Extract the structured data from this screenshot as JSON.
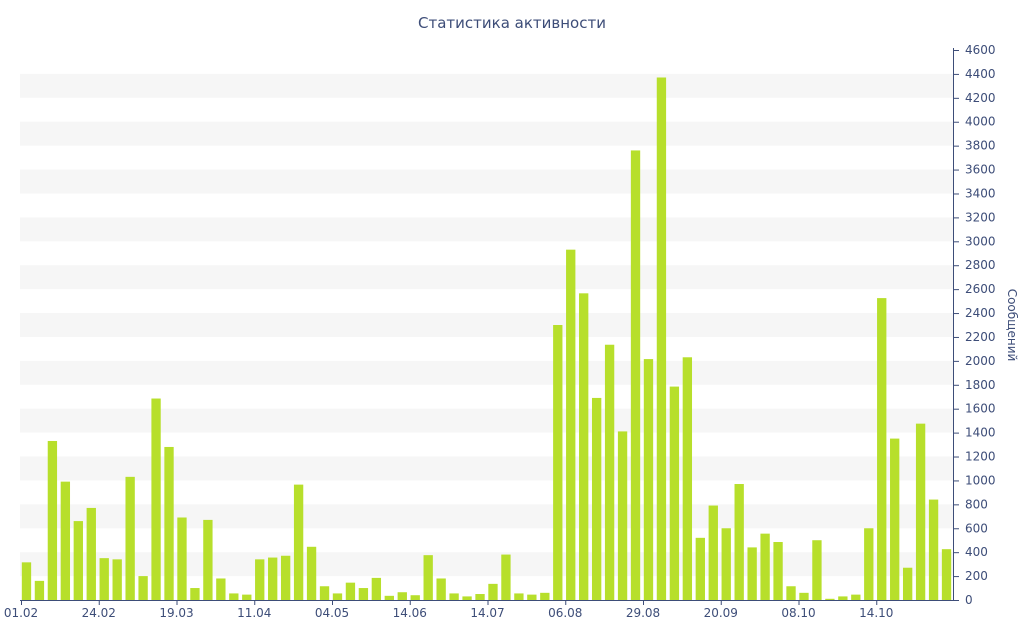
{
  "chart_data": {
    "type": "bar",
    "title": "Статистика активности",
    "xlabel": "",
    "ylabel": "Сообщений",
    "ylim": [
      0,
      4600
    ],
    "y_ticks": [
      0,
      200,
      400,
      600,
      800,
      1000,
      1200,
      1400,
      1600,
      1800,
      2000,
      2200,
      2400,
      2600,
      2800,
      3000,
      3200,
      3400,
      3600,
      3800,
      4000,
      4200,
      4400,
      4600
    ],
    "x_tick_labels": [
      {
        "label": "01.02",
        "index": 0
      },
      {
        "label": "24.02",
        "index": 6
      },
      {
        "label": "19.03",
        "index": 12
      },
      {
        "label": "11.04",
        "index": 18
      },
      {
        "label": "04.05",
        "index": 24
      },
      {
        "label": "14.06",
        "index": 30
      },
      {
        "label": "14.07",
        "index": 36
      },
      {
        "label": "06.08",
        "index": 42
      },
      {
        "label": "29.08",
        "index": 48
      },
      {
        "label": "20.09",
        "index": 54
      },
      {
        "label": "08.10",
        "index": 60
      },
      {
        "label": "14.10",
        "index": 66
      }
    ],
    "values": [
      315,
      160,
      1330,
      990,
      660,
      770,
      350,
      340,
      1030,
      200,
      1685,
      1280,
      690,
      100,
      670,
      180,
      55,
      45,
      340,
      355,
      370,
      965,
      445,
      115,
      55,
      145,
      100,
      185,
      35,
      65,
      40,
      375,
      180,
      55,
      30,
      50,
      135,
      380,
      55,
      45,
      60,
      2300,
      2930,
      2565,
      1690,
      2135,
      1410,
      3760,
      2015,
      4370,
      1785,
      2030,
      520,
      790,
      600,
      970,
      440,
      555,
      485,
      115,
      60,
      500,
      10,
      30,
      45,
      600,
      2525,
      1350,
      270,
      1475,
      840,
      425
    ],
    "bar_color": "#b7df2b",
    "grid": true,
    "grid_band_color": "#f6f6f6",
    "axis_color": "#3d4d78",
    "legend": "none"
  }
}
